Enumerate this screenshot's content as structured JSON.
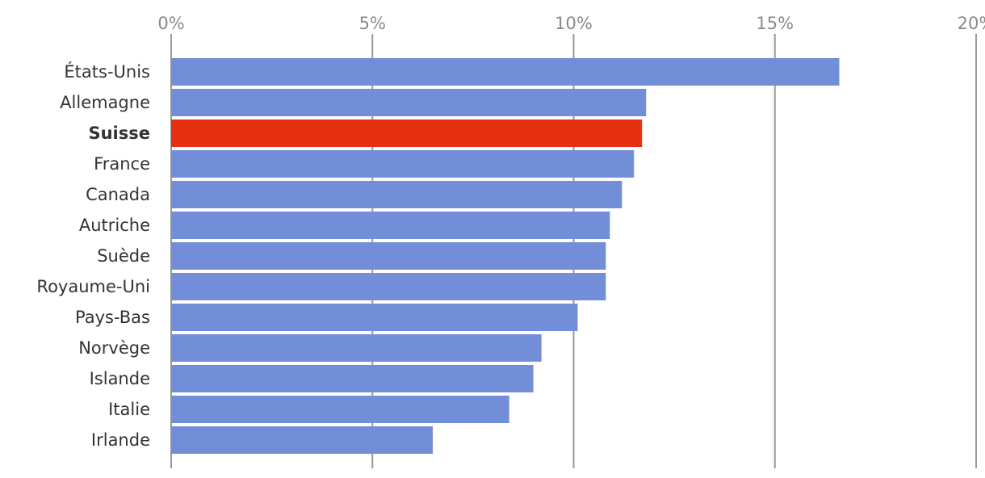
{
  "chart_data": {
    "type": "bar",
    "orientation": "horizontal",
    "title": "",
    "xlabel": "",
    "ylabel": "",
    "xlim": [
      0,
      20
    ],
    "x_ticks": [
      0,
      5,
      10,
      15,
      20
    ],
    "x_tick_labels": [
      "0%",
      "5%",
      "10%",
      "15%",
      "20%"
    ],
    "grid": true,
    "legend": "none",
    "colors": {
      "default": "#728ed9",
      "highlight": "#e63012"
    },
    "categories": [
      "États-Unis",
      "Allemagne",
      "Suisse",
      "France",
      "Canada",
      "Autriche",
      "Suède",
      "Royaume-Uni",
      "Pays-Bas",
      "Norvège",
      "Islande",
      "Italie",
      "Irlande"
    ],
    "values": [
      16.6,
      11.8,
      11.7,
      11.5,
      11.2,
      10.9,
      10.8,
      10.8,
      10.1,
      9.2,
      9.0,
      8.4,
      6.5
    ],
    "highlight": [
      "Suisse"
    ]
  }
}
